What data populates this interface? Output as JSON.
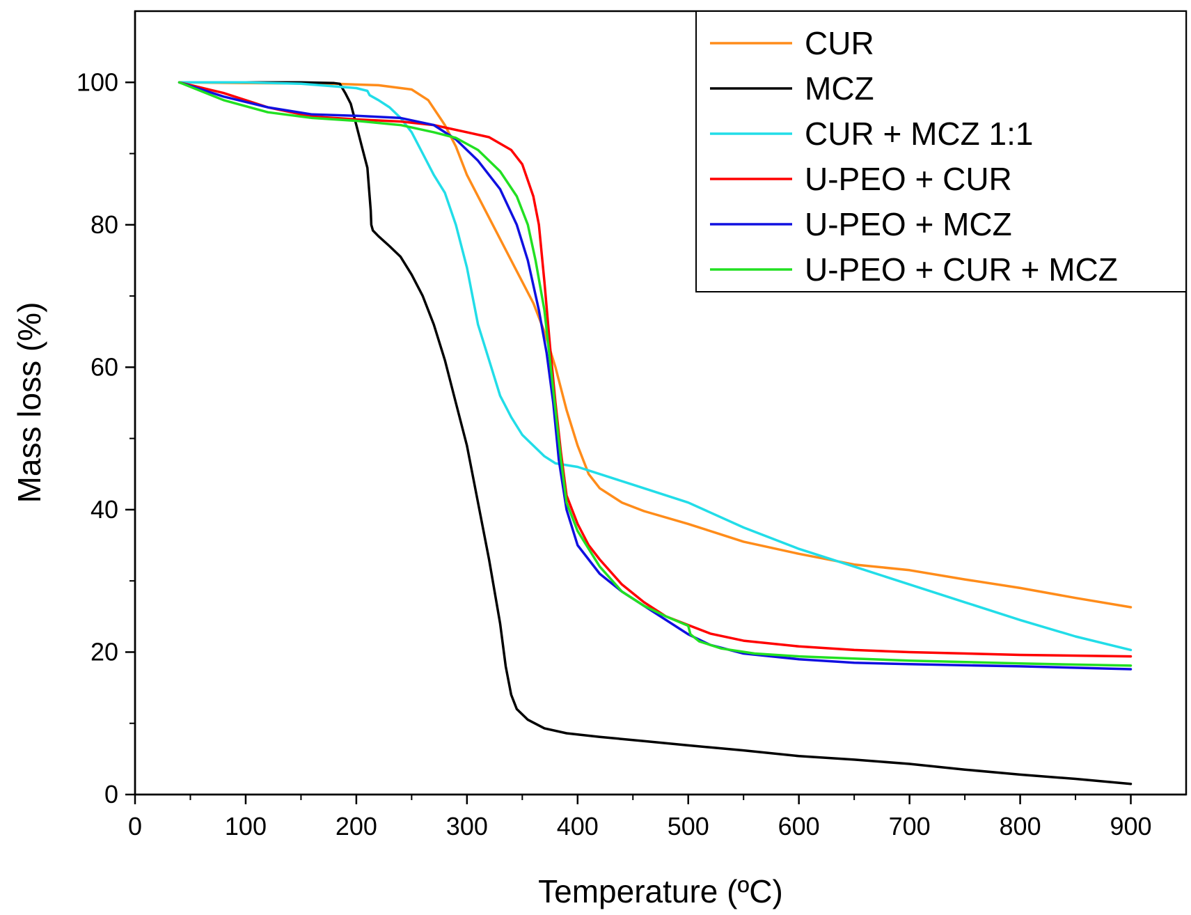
{
  "chart_data": {
    "type": "line",
    "title": "",
    "xlabel": "Temperature (ºC)",
    "ylabel": "Mass loss (%)",
    "xlim": [
      0,
      950
    ],
    "ylim": [
      0,
      110
    ],
    "xticks": [
      "0",
      "100",
      "200",
      "300",
      "400",
      "500",
      "600",
      "700",
      "800",
      "900"
    ],
    "yticks": [
      "0",
      "20",
      "40",
      "60",
      "80",
      "100"
    ],
    "grid": false,
    "legend_position": "top-right",
    "series": [
      {
        "name": "CUR",
        "color": "#ff8c1a",
        "points": [
          [
            40,
            100
          ],
          [
            100,
            99.9
          ],
          [
            180,
            99.8
          ],
          [
            220,
            99.6
          ],
          [
            250,
            99
          ],
          [
            265,
            97.5
          ],
          [
            280,
            94
          ],
          [
            290,
            91
          ],
          [
            300,
            87
          ],
          [
            320,
            81
          ],
          [
            340,
            75
          ],
          [
            360,
            69
          ],
          [
            370,
            65
          ],
          [
            380,
            60
          ],
          [
            390,
            54
          ],
          [
            400,
            49
          ],
          [
            410,
            45
          ],
          [
            420,
            43
          ],
          [
            440,
            41
          ],
          [
            460,
            39.8
          ],
          [
            500,
            38
          ],
          [
            550,
            35.5
          ],
          [
            600,
            33.8
          ],
          [
            650,
            32.3
          ],
          [
            700,
            31.5
          ],
          [
            750,
            30.2
          ],
          [
            800,
            29
          ],
          [
            850,
            27.6
          ],
          [
            900,
            26.3
          ]
        ]
      },
      {
        "name": "MCZ",
        "color": "#000000",
        "points": [
          [
            40,
            100
          ],
          [
            100,
            100
          ],
          [
            150,
            100
          ],
          [
            180,
            99.9
          ],
          [
            185,
            99.8
          ],
          [
            190,
            98.5
          ],
          [
            195,
            97
          ],
          [
            200,
            94
          ],
          [
            205,
            91
          ],
          [
            210,
            88
          ],
          [
            213,
            82
          ],
          [
            213.5,
            80
          ],
          [
            215,
            79.2
          ],
          [
            220,
            78.4
          ],
          [
            230,
            77
          ],
          [
            240,
            75.5
          ],
          [
            250,
            73
          ],
          [
            260,
            70
          ],
          [
            270,
            66
          ],
          [
            280,
            61
          ],
          [
            290,
            55
          ],
          [
            300,
            49
          ],
          [
            310,
            41
          ],
          [
            320,
            33
          ],
          [
            330,
            24
          ],
          [
            335,
            18
          ],
          [
            340,
            14
          ],
          [
            345,
            12
          ],
          [
            355,
            10.5
          ],
          [
            370,
            9.3
          ],
          [
            390,
            8.6
          ],
          [
            420,
            8.1
          ],
          [
            460,
            7.5
          ],
          [
            500,
            6.9
          ],
          [
            550,
            6.2
          ],
          [
            600,
            5.4
          ],
          [
            650,
            4.9
          ],
          [
            700,
            4.3
          ],
          [
            750,
            3.5
          ],
          [
            800,
            2.8
          ],
          [
            850,
            2.2
          ],
          [
            900,
            1.5
          ]
        ]
      },
      {
        "name": "CUR + MCZ 1:1",
        "color": "#22dde8",
        "points": [
          [
            40,
            100
          ],
          [
            100,
            100
          ],
          [
            150,
            99.8
          ],
          [
            200,
            99.2
          ],
          [
            210,
            98.8
          ],
          [
            212,
            98.2
          ],
          [
            220,
            97.5
          ],
          [
            230,
            96.5
          ],
          [
            240,
            95
          ],
          [
            250,
            93
          ],
          [
            260,
            90
          ],
          [
            270,
            87
          ],
          [
            280,
            84.5
          ],
          [
            290,
            80
          ],
          [
            300,
            74
          ],
          [
            310,
            66
          ],
          [
            320,
            61
          ],
          [
            330,
            56
          ],
          [
            340,
            53
          ],
          [
            350,
            50.5
          ],
          [
            360,
            49
          ],
          [
            370,
            47.5
          ],
          [
            380,
            46.5
          ],
          [
            400,
            46
          ],
          [
            450,
            43.5
          ],
          [
            500,
            41
          ],
          [
            550,
            37.5
          ],
          [
            600,
            34.5
          ],
          [
            650,
            32
          ],
          [
            700,
            29.5
          ],
          [
            750,
            27
          ],
          [
            800,
            24.5
          ],
          [
            850,
            22.2
          ],
          [
            900,
            20.3
          ]
        ]
      },
      {
        "name": "U-PEO + CUR",
        "color": "#ff0000",
        "points": [
          [
            40,
            100
          ],
          [
            80,
            98.5
          ],
          [
            120,
            96.5
          ],
          [
            160,
            95.2
          ],
          [
            200,
            94.8
          ],
          [
            240,
            94.5
          ],
          [
            270,
            94
          ],
          [
            300,
            93
          ],
          [
            320,
            92.3
          ],
          [
            340,
            90.5
          ],
          [
            350,
            88.5
          ],
          [
            360,
            84
          ],
          [
            365,
            80
          ],
          [
            370,
            72
          ],
          [
            375,
            63
          ],
          [
            380,
            55
          ],
          [
            385,
            48
          ],
          [
            390,
            42
          ],
          [
            400,
            38
          ],
          [
            410,
            35
          ],
          [
            420,
            33
          ],
          [
            440,
            29.5
          ],
          [
            460,
            27
          ],
          [
            480,
            25
          ],
          [
            500,
            23.8
          ],
          [
            520,
            22.6
          ],
          [
            550,
            21.6
          ],
          [
            600,
            20.8
          ],
          [
            650,
            20.3
          ],
          [
            700,
            20
          ],
          [
            800,
            19.6
          ],
          [
            900,
            19.4
          ]
        ]
      },
      {
        "name": "U-PEO + MCZ",
        "color": "#1010e0",
        "points": [
          [
            40,
            100
          ],
          [
            80,
            98
          ],
          [
            120,
            96.5
          ],
          [
            160,
            95.5
          ],
          [
            200,
            95.3
          ],
          [
            240,
            95
          ],
          [
            270,
            94
          ],
          [
            290,
            92
          ],
          [
            310,
            89
          ],
          [
            330,
            85
          ],
          [
            345,
            80
          ],
          [
            355,
            75
          ],
          [
            365,
            68
          ],
          [
            372,
            62
          ],
          [
            378,
            55
          ],
          [
            383,
            47
          ],
          [
            390,
            40
          ],
          [
            400,
            35
          ],
          [
            420,
            31
          ],
          [
            440,
            28.5
          ],
          [
            460,
            26.5
          ],
          [
            480,
            24.5
          ],
          [
            500,
            22.5
          ],
          [
            520,
            21
          ],
          [
            550,
            19.8
          ],
          [
            600,
            19
          ],
          [
            650,
            18.5
          ],
          [
            700,
            18.3
          ],
          [
            800,
            18
          ],
          [
            900,
            17.6
          ]
        ]
      },
      {
        "name": "U-PEO + CUR + MCZ",
        "color": "#22e022",
        "points": [
          [
            40,
            100
          ],
          [
            80,
            97.5
          ],
          [
            120,
            95.8
          ],
          [
            160,
            95
          ],
          [
            200,
            94.6
          ],
          [
            240,
            94
          ],
          [
            270,
            93
          ],
          [
            290,
            92.2
          ],
          [
            310,
            90.5
          ],
          [
            330,
            87.5
          ],
          [
            345,
            84
          ],
          [
            355,
            80
          ],
          [
            362,
            75
          ],
          [
            370,
            68
          ],
          [
            375,
            61
          ],
          [
            380,
            54
          ],
          [
            385,
            47
          ],
          [
            390,
            41
          ],
          [
            400,
            37
          ],
          [
            420,
            32
          ],
          [
            440,
            28.5
          ],
          [
            460,
            26.5
          ],
          [
            480,
            25
          ],
          [
            500,
            23.7
          ],
          [
            502,
            22.5
          ],
          [
            510,
            21.5
          ],
          [
            530,
            20.5
          ],
          [
            560,
            19.8
          ],
          [
            600,
            19.4
          ],
          [
            650,
            19.1
          ],
          [
            700,
            18.8
          ],
          [
            800,
            18.4
          ],
          [
            900,
            18.1
          ]
        ]
      }
    ]
  }
}
